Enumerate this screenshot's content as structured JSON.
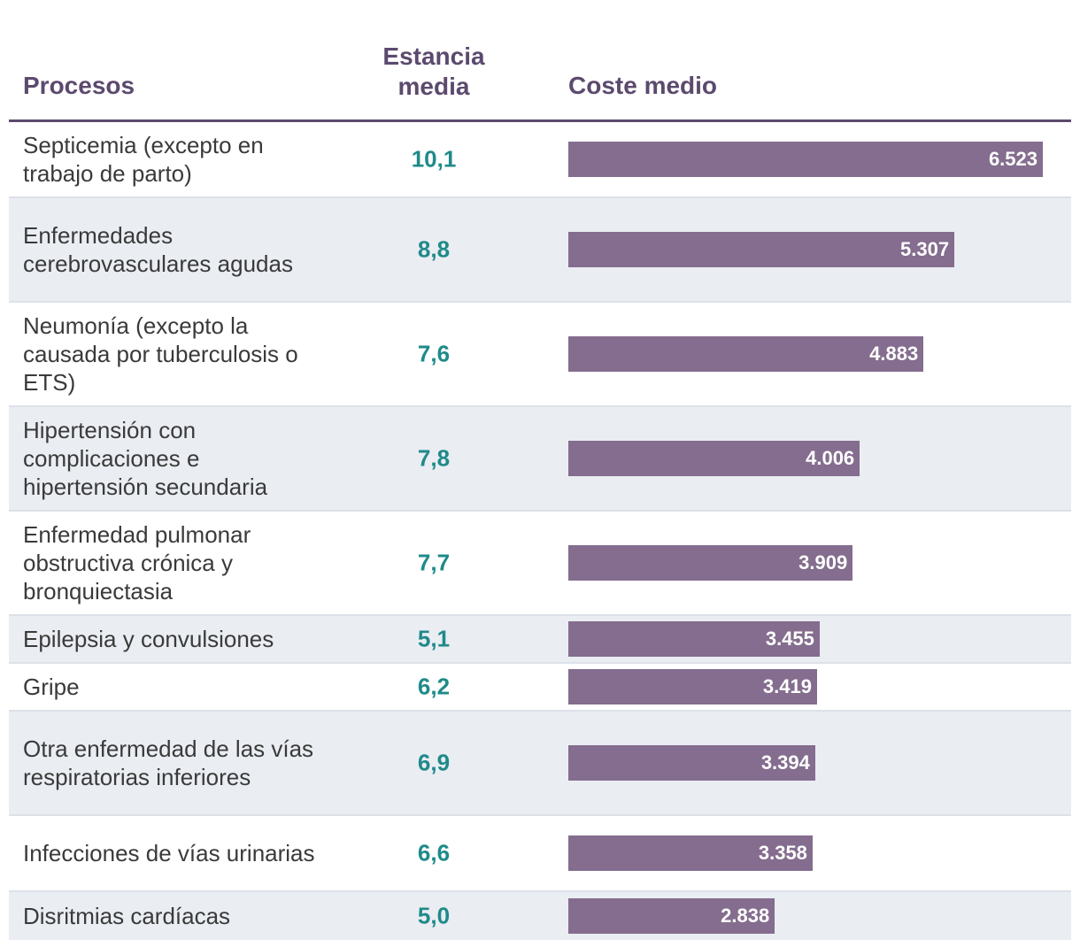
{
  "header": {
    "procesos": "Procesos",
    "estancia_line1": "Estancia",
    "estancia_line2": "media",
    "coste": "Coste medio"
  },
  "colors": {
    "header_text": "#5c4a6e",
    "stay_text": "#1f8a8a",
    "bar": "#846d8e",
    "alt_row": "#eaedf2"
  },
  "chart_data": {
    "type": "bar",
    "orientation": "horizontal",
    "title": "",
    "columns": [
      "Procesos",
      "Estancia media",
      "Coste medio"
    ],
    "categories": [
      "Septicemia (excepto en trabajo de parto)",
      "Enfermedades cerebrovasculares agudas",
      "Neumonía (excepto la causada por tuberculosis o ETS)",
      "Hipertensión con complicaciones e hipertensión secundaria",
      "Enfermedad pulmonar obstructiva crónica y bronquiectasia",
      "Epilepsia y convulsiones",
      "Gripe",
      "Otra enfermedad de las vías respiratorias inferiores",
      "Infecciones de vías urinarias",
      "Disritmias cardíacas"
    ],
    "estancia_media": [
      "10,1",
      "8,8",
      "7,6",
      "7,8",
      "7,7",
      "5,1",
      "6,2",
      "6,9",
      "6,6",
      "5,0"
    ],
    "values": [
      6523,
      5307,
      4883,
      4006,
      3909,
      3455,
      3419,
      3394,
      3358,
      2838
    ],
    "value_labels": [
      "6.523",
      "5.307",
      "4.883",
      "4.006",
      "3.909",
      "3.455",
      "3.419",
      "3.394",
      "3.358",
      "2.838"
    ],
    "xlim": [
      0,
      6523
    ]
  }
}
